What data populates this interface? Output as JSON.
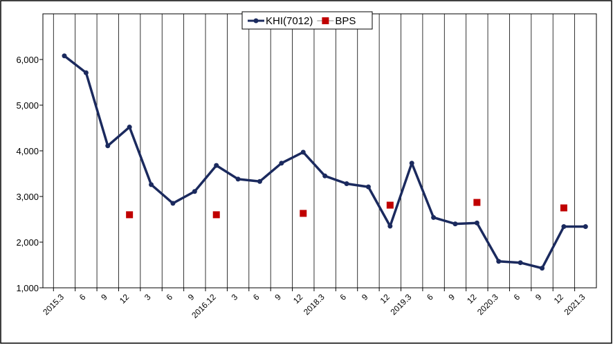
{
  "chart_data": {
    "type": "line",
    "categories": [
      "2015.3",
      "6",
      "9",
      "12",
      "3",
      "6",
      "9",
      "2016.12",
      "3",
      "6",
      "9",
      "12",
      "2018.3",
      "6",
      "9",
      "12",
      "2019.3",
      "6",
      "9",
      "12",
      "2020.3",
      "6",
      "9",
      "12",
      "2021.3"
    ],
    "series": [
      {
        "name": "KHI(7012)",
        "color": "#1b2a5e",
        "type": "line",
        "values": [
          6080,
          5710,
          4110,
          4520,
          3260,
          2850,
          3110,
          3680,
          3380,
          3330,
          3730,
          3970,
          3450,
          3280,
          3210,
          2350,
          3730,
          2540,
          2400,
          2420,
          1580,
          1550,
          1430,
          2340,
          2340
        ]
      },
      {
        "name": "BPS",
        "color": "#c00000",
        "type": "scatter",
        "values": [
          null,
          null,
          null,
          2600,
          null,
          null,
          null,
          2600,
          null,
          null,
          null,
          2630,
          null,
          null,
          null,
          2810,
          null,
          null,
          null,
          2870,
          null,
          null,
          null,
          2750,
          null
        ]
      }
    ],
    "ylim": [
      1000,
      7000
    ],
    "yticks": [
      {
        "value": 1000,
        "label": "1,000"
      },
      {
        "value": 2000,
        "label": "2,000"
      },
      {
        "value": 3000,
        "label": "3,000"
      },
      {
        "value": 4000,
        "label": "4,000"
      },
      {
        "value": 5000,
        "label": "5,000"
      },
      {
        "value": 6000,
        "label": "6,000"
      }
    ],
    "grid": "x",
    "legend": "top"
  }
}
